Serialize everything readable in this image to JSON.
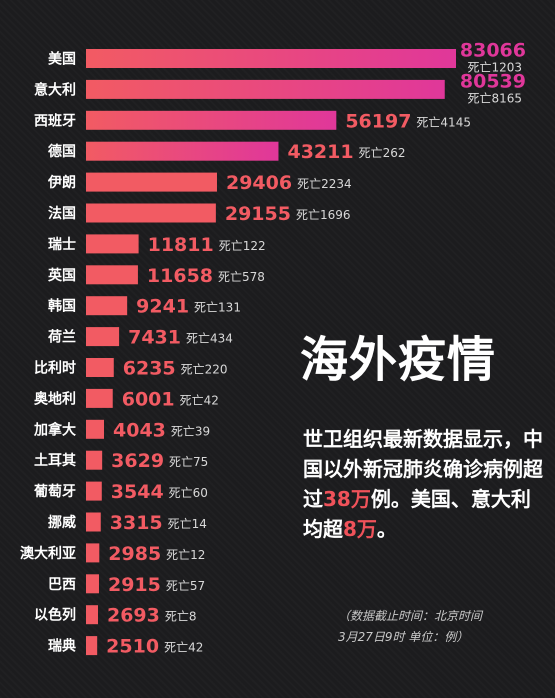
{
  "title": "海外疫情",
  "description": {
    "part1": "世卫组织最新数据显示，中国以外新冠肺炎确诊病例超过",
    "highlight1": "38万",
    "part2": "例。美国、意大利均超",
    "highlight2": "8万",
    "part3": "。"
  },
  "note": {
    "line1": "（数据截止时间：北京时间",
    "line2": "3月27日9时  单位：例）"
  },
  "colors": {
    "bar_low": "#f25b63",
    "bar_high": "#e0379a",
    "value_text": "#f25b63",
    "value_text_high": "#e0379a"
  },
  "chart_data": {
    "type": "bar",
    "orientation": "horizontal",
    "title": "",
    "xlabel": "",
    "ylabel": "",
    "categories": [
      "美国",
      "意大利",
      "西班牙",
      "德国",
      "伊朗",
      "法国",
      "瑞士",
      "英国",
      "韩国",
      "荷兰",
      "比利时",
      "奥地利",
      "加拿大",
      "土耳其",
      "葡萄牙",
      "挪威",
      "澳大利亚",
      "巴西",
      "以色列",
      "瑞典"
    ],
    "series": [
      {
        "values": [
          83066,
          80539,
          56197,
          43211,
          29406,
          29155,
          11811,
          11658,
          9241,
          7431,
          6235,
          6001,
          4043,
          3629,
          3544,
          3315,
          2985,
          2915,
          2693,
          2510
        ]
      }
    ],
    "deaths": [
      "死亡1203",
      "死亡8165",
      "死亡4145",
      "死亡262",
      "死亡2234",
      "死亡1696",
      "死亡122",
      "死亡578",
      "死亡131",
      "死亡434",
      "死亡220",
      "死亡42",
      "死亡39",
      "死亡75",
      "死亡60",
      "死亡14",
      "死亡12",
      "死亡57",
      "死亡8",
      "死亡42"
    ],
    "grid": false
  }
}
